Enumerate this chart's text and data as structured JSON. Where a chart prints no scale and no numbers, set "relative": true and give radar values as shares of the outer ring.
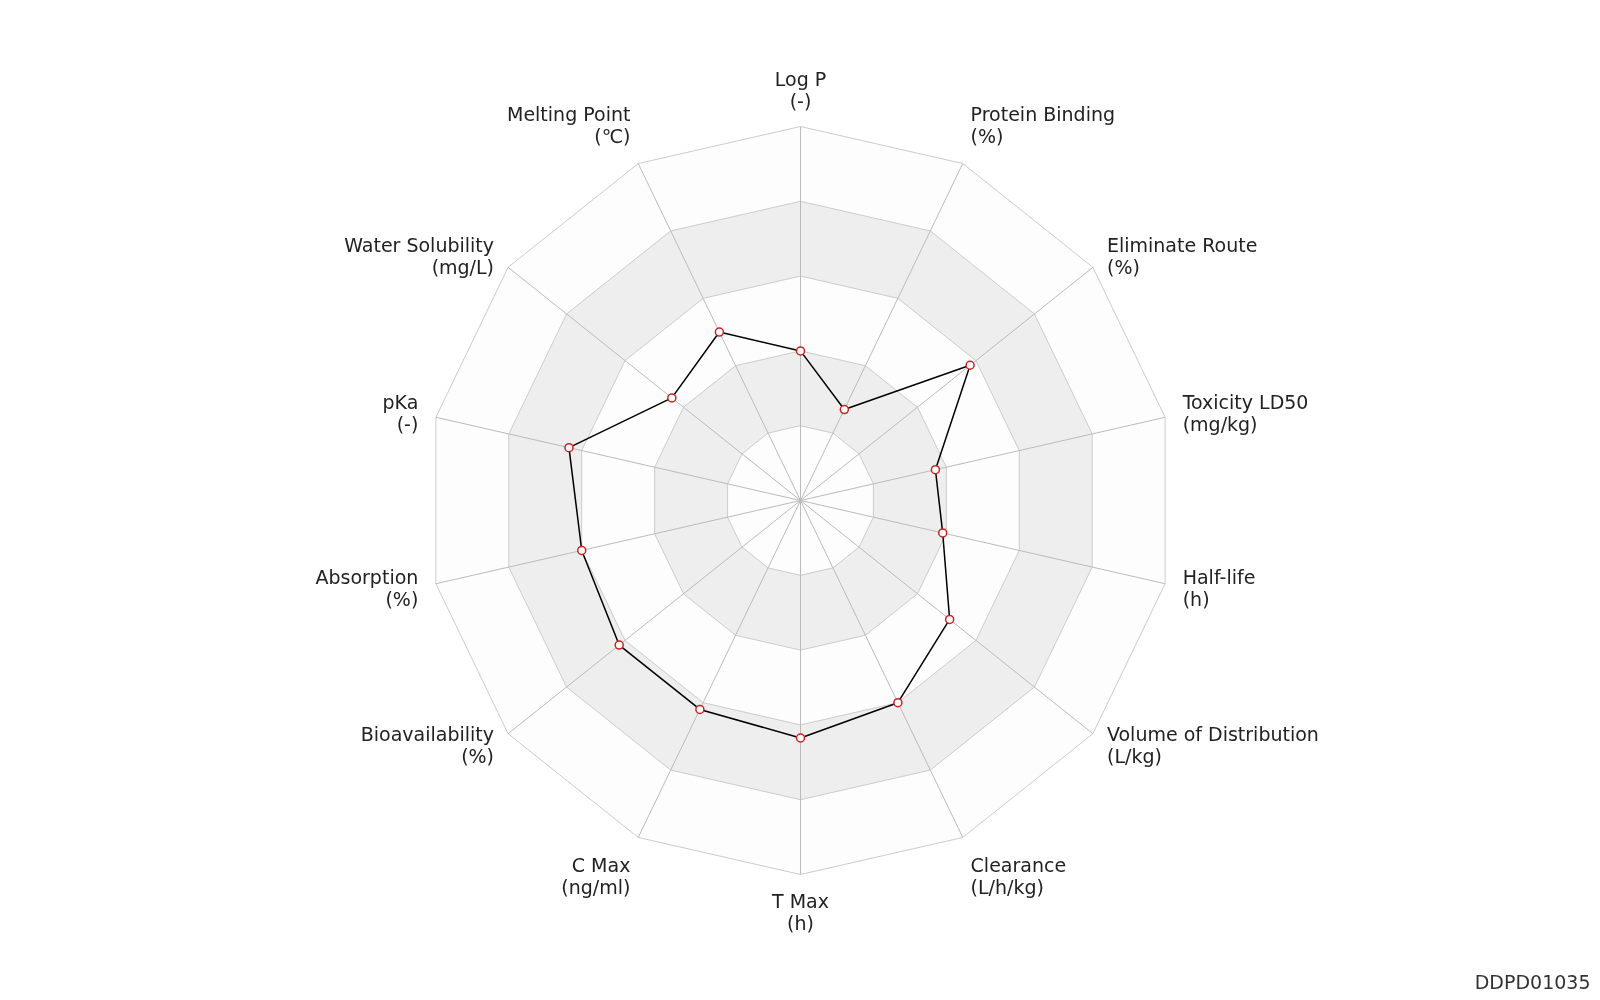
{
  "chart_data": {
    "type": "radar",
    "relative": true,
    "grid": true,
    "marker": "circle",
    "categories": [
      "Log P\n(-)",
      "Protein Binding\n(%)",
      "Eliminate Route\n(%)",
      "Toxicity LD50\n(mg/kg)",
      "Half-life\n(h)",
      "Volume of Distribution\n(L/kg)",
      "Clearance\n(L/h/kg)",
      "T Max\n(h)",
      "C Max\n(ng/ml)",
      "Bioavailability\n(%)",
      "Absorption\n(%)",
      "pKa\n(-)",
      "Water Solubility\n(mg/L)",
      "Melting Point\n(℃)"
    ],
    "series": [
      {
        "color": "#000000",
        "values": [
          0.4,
          0.27,
          0.58,
          0.37,
          0.39,
          0.51,
          0.6,
          0.635,
          0.62,
          0.62,
          0.6,
          0.635,
          0.44,
          0.5
        ]
      }
    ],
    "annotations": [
      "DDPD01035"
    ]
  }
}
